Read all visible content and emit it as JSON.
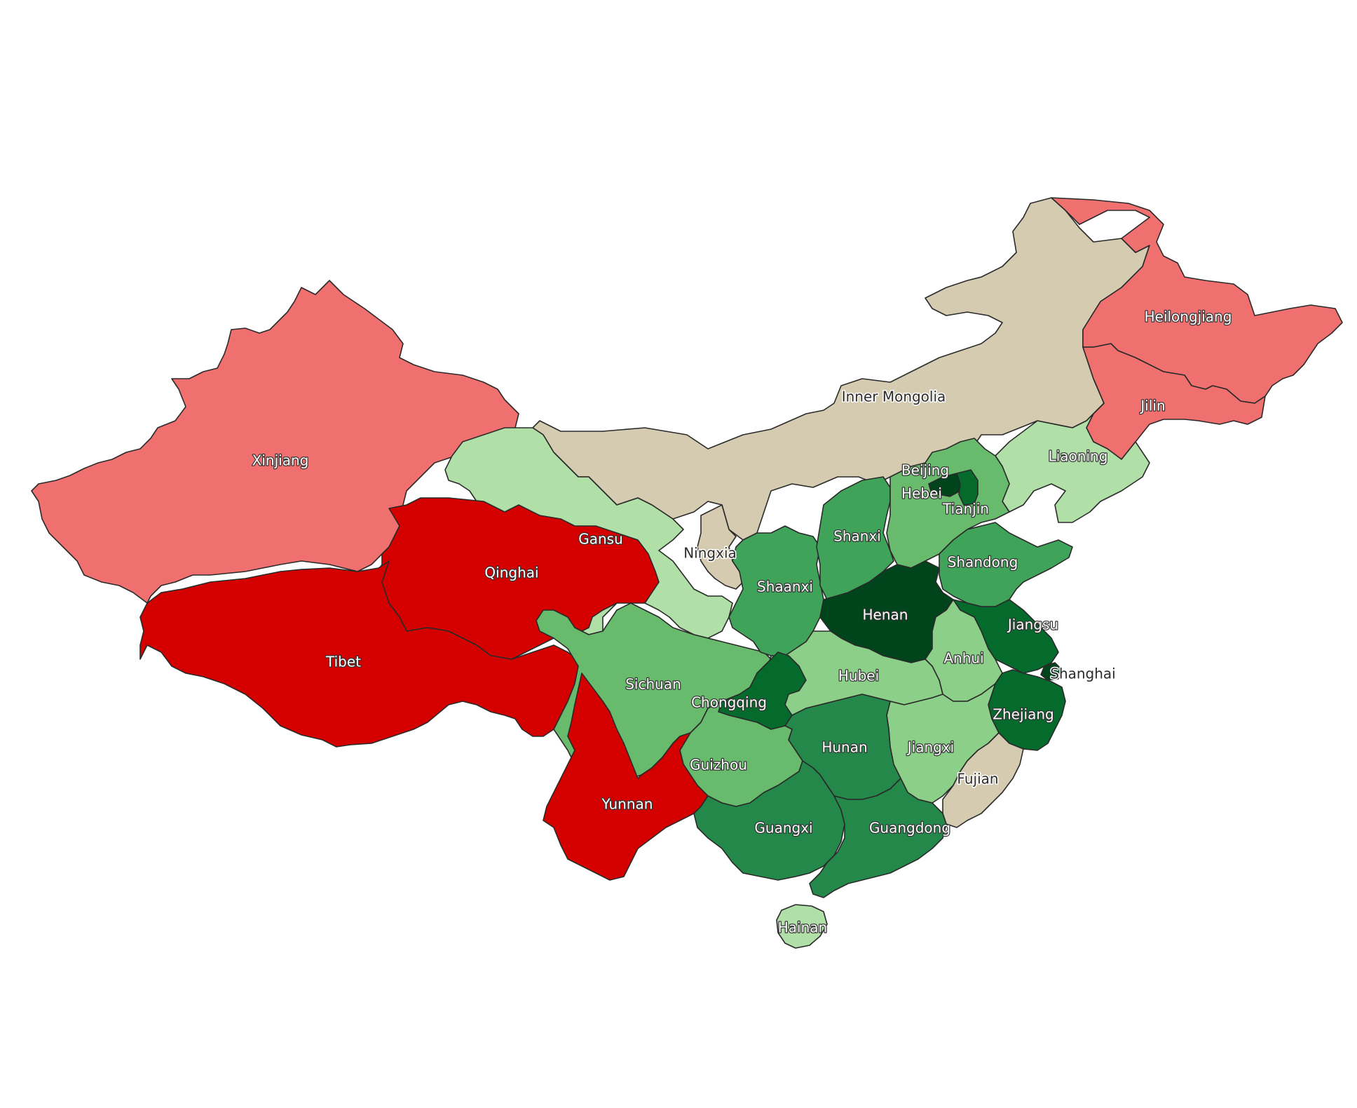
{
  "map": {
    "color_scale": {
      "negative_strong": "#d40000",
      "negative_light": "#f07070",
      "neutral": "#d4cbb0",
      "positive_lightest": "#b0e0a8",
      "positive_light": "#8ccf88",
      "positive_mid": "#68bb6c",
      "positive_mid_dark": "#3fa45a",
      "positive_dark": "#23884a",
      "positive_darker": "#046b2c",
      "positive_darkest": "#00441b"
    },
    "regions": [
      {
        "name": "Xinjiang",
        "color": "#f07070"
      },
      {
        "name": "Tibet",
        "color": "#d40000"
      },
      {
        "name": "Qinghai",
        "color": "#d40000"
      },
      {
        "name": "Gansu",
        "color": "#b0e0a8"
      },
      {
        "name": "Inner Mongolia",
        "color": "#d4cbb0"
      },
      {
        "name": "Heilongjiang",
        "color": "#f07070"
      },
      {
        "name": "Jilin",
        "color": "#f07070"
      },
      {
        "name": "Liaoning",
        "color": "#b0e0a8"
      },
      {
        "name": "Beijing",
        "color": "#00441b"
      },
      {
        "name": "Hebei",
        "color": "#68bb6c"
      },
      {
        "name": "Tianjin",
        "color": "#046b2c"
      },
      {
        "name": "Shanxi",
        "color": "#3fa45a"
      },
      {
        "name": "Ningxia",
        "color": "#d4cbb0"
      },
      {
        "name": "Shaanxi",
        "color": "#3fa45a"
      },
      {
        "name": "Shandong",
        "color": "#3fa45a"
      },
      {
        "name": "Henan",
        "color": "#00441b"
      },
      {
        "name": "Jiangsu",
        "color": "#046b2c"
      },
      {
        "name": "Anhui",
        "color": "#8ccf88"
      },
      {
        "name": "Shanghai",
        "color": "#00441b"
      },
      {
        "name": "Hubei",
        "color": "#8ccf88"
      },
      {
        "name": "Sichuan",
        "color": "#68bb6c"
      },
      {
        "name": "Chongqing",
        "color": "#046b2c"
      },
      {
        "name": "Zhejiang",
        "color": "#046b2c"
      },
      {
        "name": "Hunan",
        "color": "#23884a"
      },
      {
        "name": "Jiangxi",
        "color": "#8ccf88"
      },
      {
        "name": "Guizhou",
        "color": "#68bb6c"
      },
      {
        "name": "Yunnan",
        "color": "#d40000"
      },
      {
        "name": "Fujian",
        "color": "#d4cbb0"
      },
      {
        "name": "Guangxi",
        "color": "#23884a"
      },
      {
        "name": "Guangdong",
        "color": "#23884a"
      },
      {
        "name": "Hainan",
        "color": "#b0e0a8"
      }
    ]
  }
}
